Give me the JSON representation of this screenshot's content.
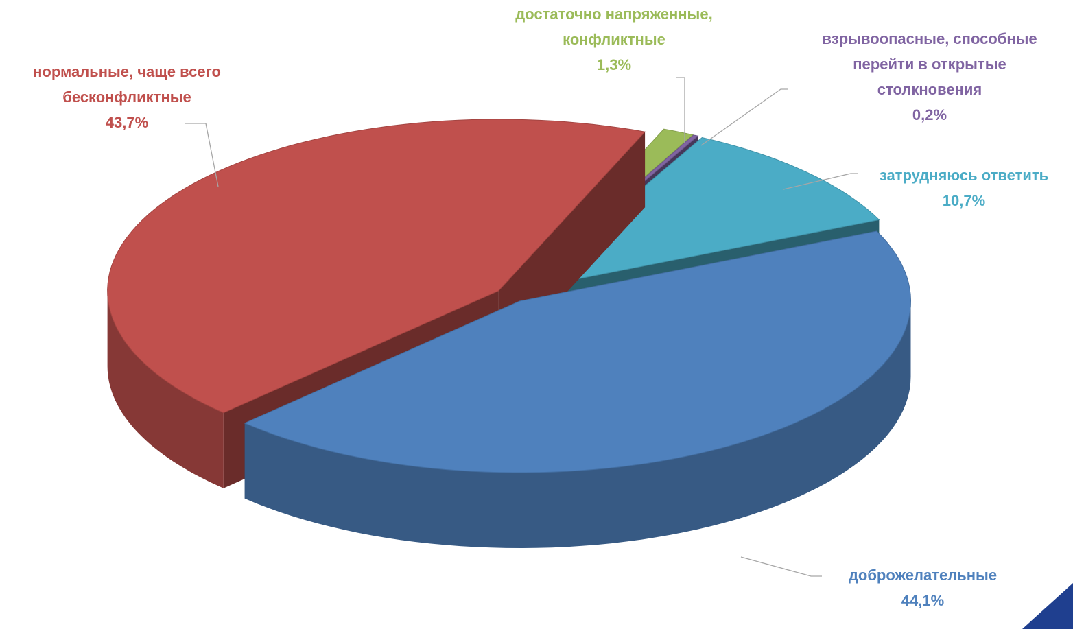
{
  "chart_data": {
    "type": "pie3d",
    "categories": [
      "достаточно напряженные, конфликтные",
      "взрывоопасные, способные перейти в открытые столкновения",
      "затрудняюсь ответить",
      "доброжелательные",
      "нормальные, чаще всего бесконфликтные"
    ],
    "values": [
      1.3,
      0.2,
      10.7,
      44.1,
      43.7
    ],
    "value_labels": [
      "1,3%",
      "0,2%",
      "10,7%",
      "44,1%",
      "43,7%"
    ],
    "colors": [
      "#9bbb59",
      "#8064a2",
      "#4bacc6",
      "#4f81bd",
      "#c0504d"
    ]
  }
}
